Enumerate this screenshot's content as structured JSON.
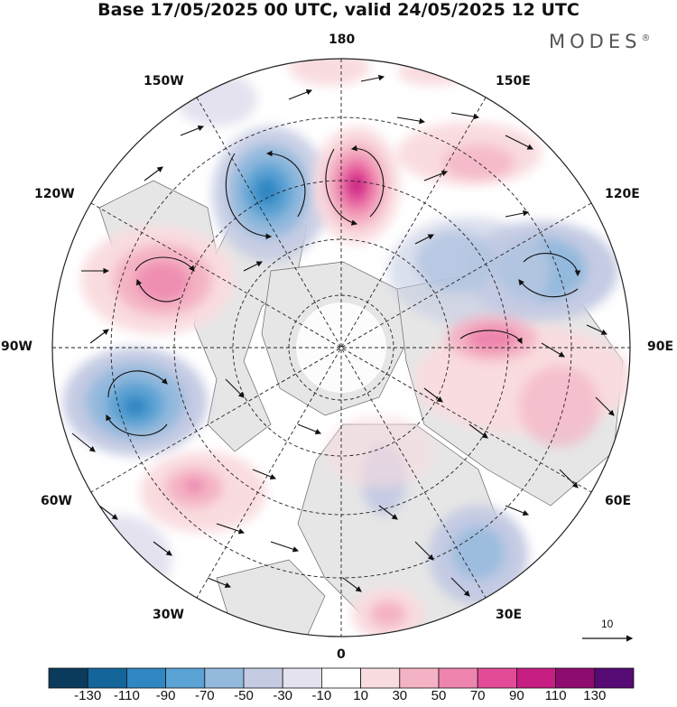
{
  "title": "Base 17/05/2025 00 UTC, valid 24/05/2025 12 UTC",
  "brand": {
    "text": "MODES",
    "mark": "®"
  },
  "longitude_labels": {
    "lon_180": "180",
    "lon_150w": "150W",
    "lon_150e": "150E",
    "lon_120w": "120W",
    "lon_120e": "120E",
    "lon_90w": "90W",
    "lon_90e": "90E",
    "lon_60w": "60W",
    "lon_60e": "60E",
    "lon_30w": "30W",
    "lon_30e": "30E",
    "lon_0": "0"
  },
  "reference_vector": {
    "value": "10",
    "icon": "arrow-right-icon"
  },
  "colorbar": {
    "colors": [
      "#0b3b5c",
      "#13659a",
      "#2f86c2",
      "#5ba3d4",
      "#93b9dd",
      "#c4cbe3",
      "#e4e2ef",
      "#ffffff",
      "#f9dcdf",
      "#f4b3c4",
      "#ee85ae",
      "#e34b98",
      "#c61e82",
      "#8e0c70",
      "#560a74"
    ],
    "ticks": [
      "-130",
      "-110",
      "-90",
      "-70",
      "-50",
      "-30",
      "-10",
      "10",
      "30",
      "50",
      "70",
      "90",
      "110",
      "130"
    ]
  },
  "anomaly_centers": [
    {
      "kind": "negative",
      "color": "#2f86c2"
    },
    {
      "kind": "positive",
      "color": "#c61e82"
    }
  ]
}
